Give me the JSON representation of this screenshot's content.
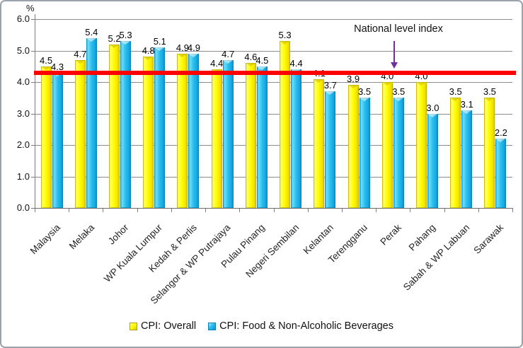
{
  "frame": {
    "background": "#FFFFFF",
    "border_color": "#9AA3AB"
  },
  "chart_data": {
    "type": "bar",
    "title": "",
    "unit_label": "%",
    "categories": [
      "Malaysia",
      "Melaka",
      "Johor",
      "WP Kuala Lumpur",
      "Kedah & Perlis",
      "Selangor & WP Putrajaya",
      "Pulau Pinang",
      "Negeri Sembilan",
      "Kelantan",
      "Terengganu",
      "Perak",
      "Pahang",
      "Sabah & WP Labuan",
      "Sarawak"
    ],
    "series": [
      {
        "name": "CPI: Overall",
        "color": "#FFFF00",
        "values": [
          4.5,
          4.7,
          5.2,
          4.8,
          4.9,
          4.4,
          4.6,
          5.3,
          4.1,
          3.9,
          4.0,
          4.0,
          3.5,
          3.5
        ]
      },
      {
        "name": "CPI: Food & Non-Alcoholic Beverages",
        "color": "#29BEEF",
        "values": [
          4.3,
          5.4,
          5.3,
          5.1,
          4.9,
          4.7,
          4.5,
          4.4,
          3.7,
          3.5,
          3.5,
          3.0,
          3.1,
          2.2
        ]
      }
    ],
    "ylim": [
      0,
      6
    ],
    "ytick_step": 1,
    "ytick_labels": [
      "6.0",
      "5.0",
      "4.0",
      "3.0",
      "2.0",
      "1.0",
      "0.0"
    ],
    "grid": true,
    "data_labels": true,
    "legend_position": "bottom",
    "reference_line": {
      "value": 4.3,
      "color": "#FF0000",
      "label": "National level index",
      "arrow_color": "#7030A0"
    }
  }
}
